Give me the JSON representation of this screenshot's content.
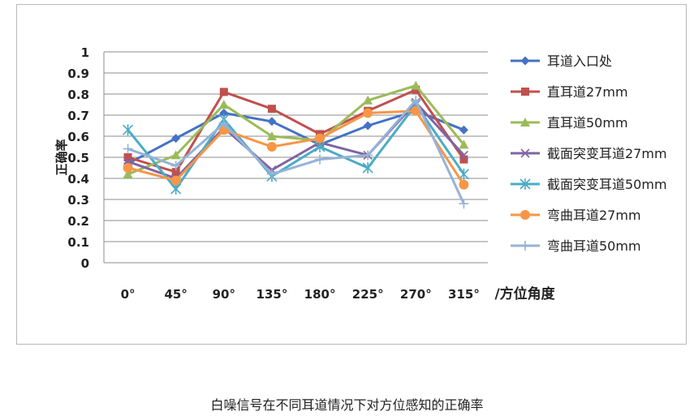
{
  "chart_data": {
    "type": "line",
    "title": "",
    "ylabel": "正确率",
    "xlabel": "/方位角度",
    "categories": [
      "0°",
      "45°",
      "90°",
      "135°",
      "180°",
      "225°",
      "270°",
      "315°"
    ],
    "ylim": [
      0,
      1
    ],
    "yticks": [
      "0",
      "0.1",
      "0.2",
      "0.3",
      "0.4",
      "0.5",
      "0.6",
      "0.7",
      "0.8",
      "0.9",
      "1"
    ],
    "grid": true,
    "legend_position": "right",
    "series": [
      {
        "name": "耳道入口处",
        "color": "#4472c4",
        "marker": "diamond",
        "values": [
          0.47,
          0.59,
          0.71,
          0.67,
          0.56,
          0.65,
          0.72,
          0.63
        ]
      },
      {
        "name": "直耳道27mm",
        "color": "#c0504d",
        "marker": "square",
        "values": [
          0.5,
          0.43,
          0.81,
          0.73,
          0.61,
          0.72,
          0.82,
          0.49
        ]
      },
      {
        "name": "直耳道50mm",
        "color": "#9bbb59",
        "marker": "triangle",
        "values": [
          0.42,
          0.51,
          0.75,
          0.6,
          0.58,
          0.77,
          0.84,
          0.56
        ]
      },
      {
        "name": "截面突变耳道27mm",
        "color": "#8064a2",
        "marker": "x",
        "values": [
          0.48,
          0.4,
          0.64,
          0.44,
          0.57,
          0.51,
          0.76,
          0.51
        ]
      },
      {
        "name": "截面突变耳道50mm",
        "color": "#4bacc6",
        "marker": "star",
        "values": [
          0.63,
          0.35,
          0.68,
          0.41,
          0.55,
          0.45,
          0.75,
          0.42
        ]
      },
      {
        "name": "弯曲耳道27mm",
        "color": "#f79646",
        "marker": "circle",
        "values": [
          0.45,
          0.39,
          0.63,
          0.55,
          0.59,
          0.71,
          0.72,
          0.37
        ]
      },
      {
        "name": "弯曲耳道50mm",
        "color": "#95b3d7",
        "marker": "plus",
        "values": [
          0.54,
          0.46,
          0.66,
          0.42,
          0.49,
          0.51,
          0.77,
          0.28
        ]
      }
    ]
  },
  "caption": "白噪信号在不同耳道情况下对方位感知的正确率"
}
